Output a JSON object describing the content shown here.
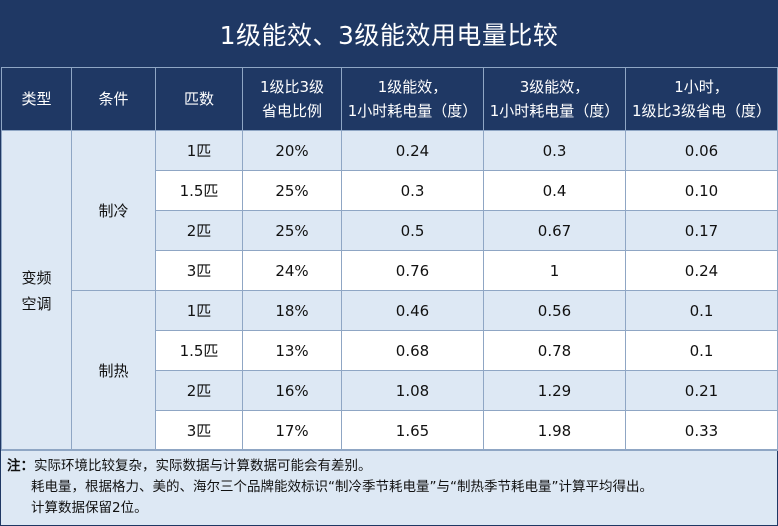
{
  "title": "1级能效、3级能效用电量比较",
  "headers": {
    "type": "类型",
    "condition": "条件",
    "hp": "匹数",
    "ratio": [
      "1级比3级",
      "省电比例"
    ],
    "level1": [
      "1级能效，",
      "1小时耗电量（度）"
    ],
    "level3": [
      "3级能效，",
      "1小时耗电量（度）"
    ],
    "saving": [
      "1小时，",
      "1级比3级省电（度）"
    ]
  },
  "type_label": [
    "变频",
    "空调"
  ],
  "conditions": [
    "制冷",
    "制热"
  ],
  "rows": [
    {
      "hp": "1匹",
      "ratio": "20%",
      "l1": "0.24",
      "l3": "0.3",
      "save": "0.06"
    },
    {
      "hp": "1.5匹",
      "ratio": "25%",
      "l1": "0.3",
      "l3": "0.4",
      "save": "0.10"
    },
    {
      "hp": "2匹",
      "ratio": "25%",
      "l1": "0.5",
      "l3": "0.67",
      "save": "0.17"
    },
    {
      "hp": "3匹",
      "ratio": "24%",
      "l1": "0.76",
      "l3": "1",
      "save": "0.24"
    },
    {
      "hp": "1匹",
      "ratio": "18%",
      "l1": "0.46",
      "l3": "0.56",
      "save": "0.1"
    },
    {
      "hp": "1.5匹",
      "ratio": "13%",
      "l1": "0.68",
      "l3": "0.78",
      "save": "0.1"
    },
    {
      "hp": "2匹",
      "ratio": "16%",
      "l1": "1.08",
      "l3": "1.29",
      "save": "0.21"
    },
    {
      "hp": "3匹",
      "ratio": "17%",
      "l1": "1.65",
      "l3": "1.98",
      "save": "0.33"
    }
  ],
  "note": {
    "label": "注：",
    "lines": [
      "实际环境比较复杂，实际数据与计算数据可能会有差别。",
      "耗电量，根据格力、美的、海尔三个品牌能效标识“制冷季节耗电量”与“制热季节耗电量”计算平均得出。",
      "计算数据保留2位。"
    ]
  },
  "colors": {
    "header_bg": "#1f3864",
    "body_bg": "#dde8f4",
    "cell_white": "#ffffff",
    "border": "#8fa6c4"
  }
}
